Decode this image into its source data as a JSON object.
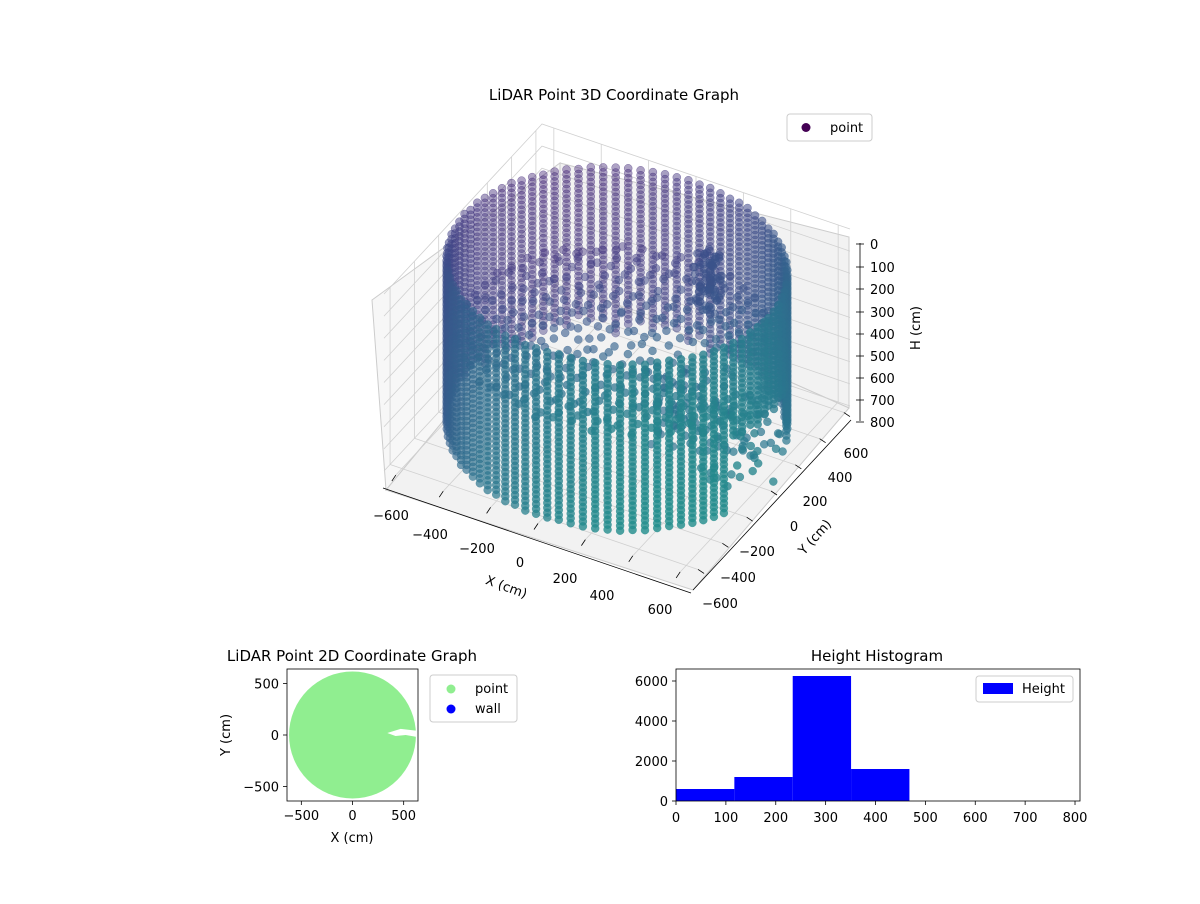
{
  "chart_data": [
    {
      "type": "scatter",
      "projection": "3d",
      "title": "LiDAR Point 3D Coordinate Graph",
      "xlabel": "X (cm)",
      "ylabel": "Y (cm)",
      "zlabel": "H (cm)",
      "xlim": [
        -650,
        650
      ],
      "ylim": [
        -650,
        650
      ],
      "zlim": [
        800,
        0
      ],
      "zaxis_inverted": true,
      "x_ticks": [
        "−600",
        "−400",
        "−200",
        "0",
        "200",
        "400",
        "600"
      ],
      "y_ticks": [
        "−600",
        "−400",
        "−200",
        "0",
        "200",
        "400",
        "600"
      ],
      "z_ticks": [
        "0",
        "100",
        "200",
        "300",
        "400",
        "500",
        "600",
        "700",
        "800"
      ],
      "legend": [
        {
          "name": "point",
          "color": "#440154"
        }
      ],
      "legend_position": "upper-right",
      "colormap": "viridis",
      "wall_radius": 640,
      "wall_height_range": [
        20,
        800
      ],
      "floor_height": 330,
      "gap_angle_range_deg": [
        -20,
        20
      ]
    },
    {
      "type": "scatter",
      "title": "LiDAR Point 2D Coordinate Graph",
      "xlabel": "X (cm)",
      "ylabel": "Y (cm)",
      "xlim": [
        -640,
        640
      ],
      "ylim": [
        -640,
        640
      ],
      "x_ticks": [
        "−500",
        "0",
        "500"
      ],
      "y_ticks": [
        "−500",
        "0",
        "500"
      ],
      "series": [
        {
          "name": "point",
          "color": "#90ee90"
        },
        {
          "name": "wall",
          "color": "#0000ff"
        }
      ],
      "legend_position": "outside-right"
    },
    {
      "type": "bar",
      "subtype": "histogram",
      "title": "Height Histogram",
      "bins": [
        {
          "start": 0,
          "end": 117,
          "count": 600
        },
        {
          "start": 117,
          "end": 234,
          "count": 1200
        },
        {
          "start": 234,
          "end": 351,
          "count": 6250
        },
        {
          "start": 351,
          "end": 468,
          "count": 1600
        },
        {
          "start": 468,
          "end": 585,
          "count": 0
        },
        {
          "start": 585,
          "end": 702,
          "count": 0
        },
        {
          "start": 702,
          "end": 800,
          "count": 0
        }
      ],
      "xlim": [
        0,
        810
      ],
      "ylim": [
        0,
        6600
      ],
      "x_ticks": [
        0,
        100,
        200,
        300,
        400,
        500,
        600,
        700,
        800
      ],
      "y_ticks": [
        0,
        2000,
        4000,
        6000
      ],
      "color": "#0000ff",
      "legend": [
        {
          "name": "Height",
          "color": "#0000ff"
        }
      ],
      "legend_position": "upper-right"
    }
  ]
}
